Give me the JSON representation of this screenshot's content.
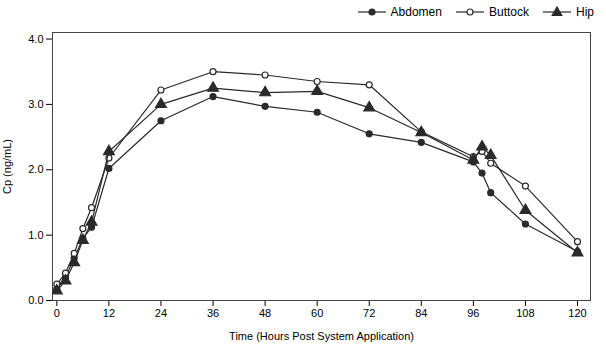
{
  "chart_data": {
    "type": "line",
    "xlabel": "Time (Hours Post System Application)",
    "ylabel": "Cp (ng/mL)",
    "x": [
      0,
      2,
      4,
      6,
      8,
      12,
      24,
      36,
      48,
      60,
      72,
      84,
      96,
      98,
      100,
      108,
      120
    ],
    "series": [
      {
        "name": "Abdomen",
        "color": "#2a2a2a",
        "marker": "circle",
        "values": [
          0.18,
          0.35,
          0.65,
          0.95,
          1.12,
          2.02,
          2.75,
          3.12,
          2.97,
          2.88,
          2.55,
          2.42,
          2.12,
          1.95,
          1.65,
          1.17,
          0.75
        ]
      },
      {
        "name": "Buttock",
        "color": "#2a2a2a",
        "marker": "open_circle",
        "values": [
          0.25,
          0.42,
          0.72,
          1.1,
          1.42,
          2.18,
          3.22,
          3.5,
          3.45,
          3.35,
          3.3,
          2.58,
          2.2,
          2.28,
          2.1,
          1.75,
          0.9
        ]
      },
      {
        "name": "Hip",
        "color": "#2a2a2a",
        "marker": "triangle",
        "values": [
          0.15,
          0.3,
          0.58,
          0.92,
          1.2,
          2.28,
          3.0,
          3.25,
          3.18,
          3.2,
          2.95,
          2.57,
          2.15,
          2.35,
          2.22,
          1.38,
          0.73
        ]
      }
    ],
    "xlim": [
      -1,
      123
    ],
    "ylim": [
      0,
      4.1
    ],
    "xticks": [
      0,
      12,
      24,
      36,
      48,
      60,
      72,
      84,
      96,
      108,
      120
    ],
    "yticks": [
      0,
      1,
      2,
      3,
      4
    ],
    "grid": false,
    "legend": "upper right"
  }
}
